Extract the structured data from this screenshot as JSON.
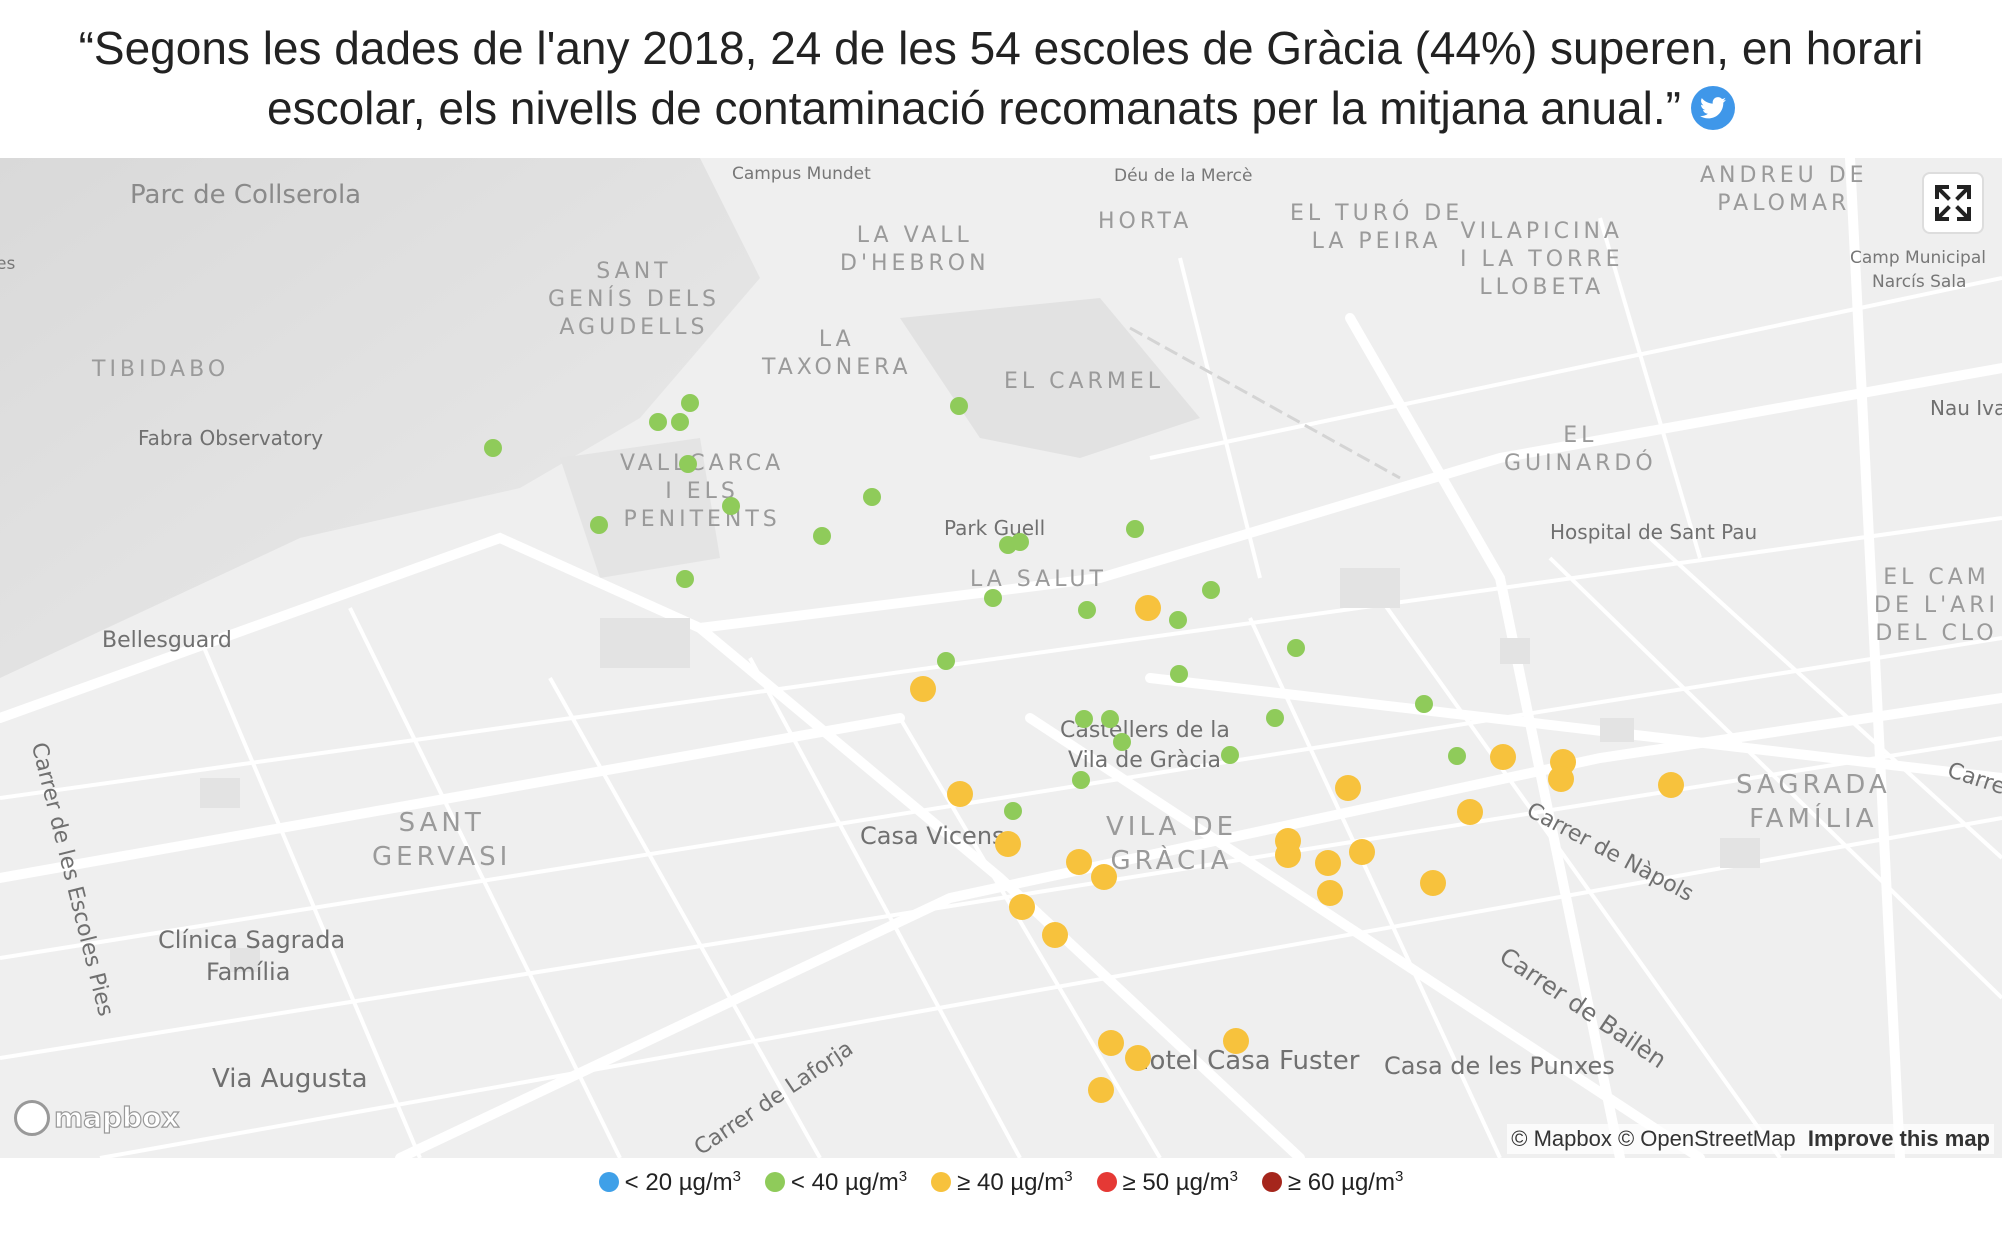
{
  "header": {
    "quote": "“Segons les dades de l'any 2018, 24 de les 54 escoles de Gràcia (44%) superen, en horari escolar, els nivells de contaminació recomanats per la mitjana anual.”"
  },
  "map": {
    "districts": [
      {
        "lines": [
          "SANT",
          "GENÍS DELS",
          "AGUDELLS"
        ]
      },
      {
        "lines": [
          "LA VALL",
          "D'HEBRON"
        ]
      },
      {
        "lines": [
          "HORTA"
        ]
      },
      {
        "lines": [
          "EL TURÓ DE",
          "LA PEIRA"
        ]
      },
      {
        "lines": [
          "VILAPICINA",
          "I LA TORRE",
          "LLOBETA"
        ]
      },
      {
        "lines": [
          "ANDREU DE",
          "PALOMAR"
        ]
      },
      {
        "lines": [
          "LA",
          "TAXONERA"
        ]
      },
      {
        "lines": [
          "EL CARMEL"
        ]
      },
      {
        "lines": [
          "TIBIDABO"
        ]
      },
      {
        "lines": [
          "VALLCARCA",
          "I ELS",
          "PENITENTS"
        ]
      },
      {
        "lines": [
          "EL",
          "GUINARDÓ"
        ]
      },
      {
        "lines": [
          "LA SALUT"
        ]
      },
      {
        "lines": [
          "EL CAM",
          "DE L'ARI",
          "DEL CLO"
        ]
      },
      {
        "lines": [
          "SAGRADA",
          "FAMÍLIA"
        ]
      },
      {
        "lines": [
          "VILA DE",
          "GRÀCIA"
        ]
      },
      {
        "lines": [
          "SANT",
          "GERVASI"
        ]
      }
    ],
    "pois": [
      "Parc de Collserola",
      "Campus Mundet",
      "Déu de la Mercè",
      "Camp Municipal",
      "Narcís Sala",
      "Fabra Observatory",
      "Nau Ivar",
      "Park Guell",
      "Hospital de Sant Pau",
      "Bellesguard",
      "Castellers de la",
      "Vila de Gràcia",
      "Casa Vicens",
      "Clínica Sagrada",
      "Família",
      "Via Augusta",
      "Hotel Casa Fuster",
      "Casa de les Punxes",
      "es"
    ],
    "streets": [
      "Carrer de les Escoles Pies",
      "Carrer de Nàpols",
      "Carrer de Bailèn",
      "Carrer de Laforja",
      "Carre"
    ],
    "fullscreen_icon": "expand-arrows-icon",
    "logo": "mapbox",
    "attribution": {
      "mapbox": "© Mapbox",
      "osm": "© OpenStreetMap",
      "improve": "Improve this map"
    },
    "schools": [
      {
        "level": "lt40"
      },
      {
        "level": "lt40"
      },
      {
        "level": "lt40"
      },
      {
        "level": "lt40"
      },
      {
        "level": "lt40"
      },
      {
        "level": "lt40"
      },
      {
        "level": "lt40"
      },
      {
        "level": "lt40"
      },
      {
        "level": "lt40"
      },
      {
        "level": "lt40"
      },
      {
        "level": "lt40"
      },
      {
        "level": "lt40"
      },
      {
        "level": "lt40"
      },
      {
        "level": "lt40"
      },
      {
        "level": "lt40"
      },
      {
        "level": "lt40"
      },
      {
        "level": "lt40"
      },
      {
        "level": "lt40"
      },
      {
        "level": "lt40"
      },
      {
        "level": "lt40"
      },
      {
        "level": "lt40"
      },
      {
        "level": "lt40"
      },
      {
        "level": "lt40"
      },
      {
        "level": "lt40"
      },
      {
        "level": "lt40"
      },
      {
        "level": "lt40"
      },
      {
        "level": "lt40"
      },
      {
        "level": "lt40"
      },
      {
        "level": "lt40"
      },
      {
        "level": "lt40"
      },
      {
        "level": "ge40"
      },
      {
        "level": "ge40"
      },
      {
        "level": "ge40"
      },
      {
        "level": "ge40"
      },
      {
        "level": "ge40"
      },
      {
        "level": "ge40"
      },
      {
        "level": "ge40"
      },
      {
        "level": "ge40"
      },
      {
        "level": "ge40"
      },
      {
        "level": "ge40"
      },
      {
        "level": "ge40"
      },
      {
        "level": "ge40"
      },
      {
        "level": "ge40"
      },
      {
        "level": "ge40"
      },
      {
        "level": "ge40"
      },
      {
        "level": "ge40"
      },
      {
        "level": "ge40"
      },
      {
        "level": "ge40"
      },
      {
        "level": "ge40"
      },
      {
        "level": "ge40"
      },
      {
        "level": "ge40"
      },
      {
        "level": "ge40"
      },
      {
        "level": "ge40"
      },
      {
        "level": "ge40"
      }
    ]
  },
  "legend": {
    "items": [
      {
        "label": "< 20 µg/m",
        "sup": "3",
        "color": "#3fa0e8"
      },
      {
        "label": "< 40 µg/m",
        "sup": "3",
        "color": "#8fcb5a"
      },
      {
        "label": "≥ 40 µg/m",
        "sup": "3",
        "color": "#f7c23d"
      },
      {
        "label": "≥ 50 µg/m",
        "sup": "3",
        "color": "#e53935"
      },
      {
        "label": "≥ 60 µg/m",
        "sup": "3",
        "color": "#a5261c"
      }
    ]
  }
}
